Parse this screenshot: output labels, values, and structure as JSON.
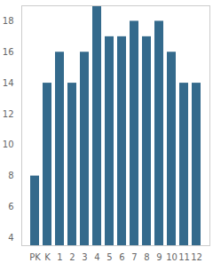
{
  "chart_data": {
    "type": "bar",
    "categories": [
      "PK",
      "K",
      "1",
      "2",
      "3",
      "4",
      "5",
      "6",
      "7",
      "8",
      "9",
      "10",
      "11",
      "12"
    ],
    "values": [
      8,
      14,
      16,
      14,
      16,
      19,
      17,
      17,
      18,
      17,
      18,
      16,
      14,
      14
    ],
    "color": "#346a8c",
    "ylim": [
      3.5,
      19
    ],
    "yticks": [
      4,
      6,
      8,
      10,
      12,
      14,
      16,
      18
    ],
    "grid": false
  }
}
